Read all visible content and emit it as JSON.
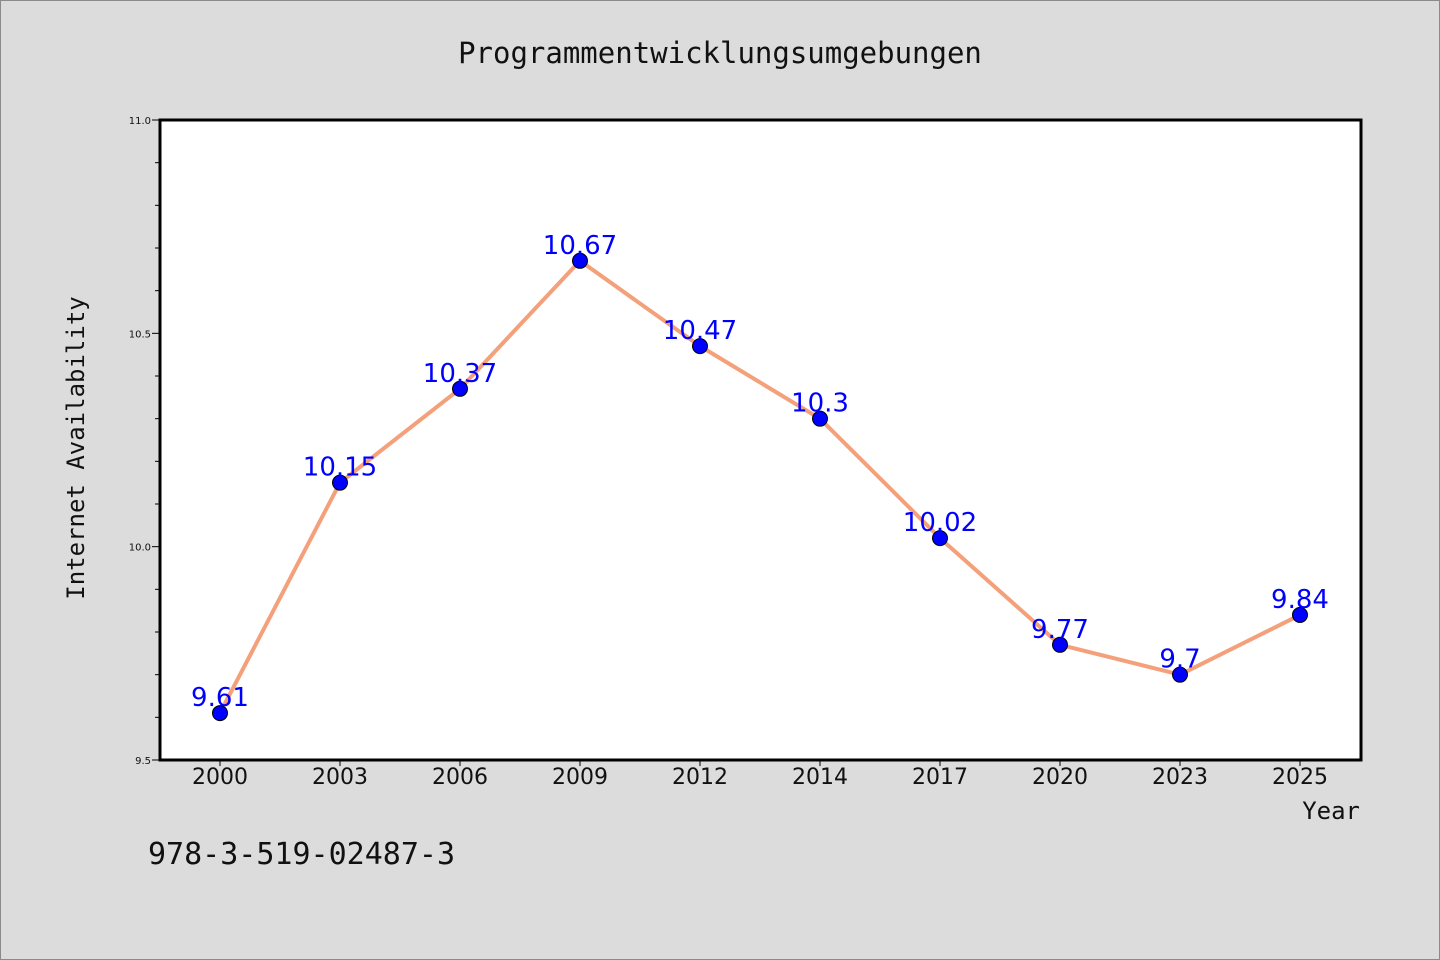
{
  "chart_data": {
    "type": "line",
    "title": "Programmentwicklungsumgebungen",
    "xlabel": "Year",
    "ylabel": "Internet Availability",
    "categories": [
      "2000",
      "2003",
      "2006",
      "2009",
      "2012",
      "2014",
      "2017",
      "2020",
      "2023",
      "2025"
    ],
    "series": [
      {
        "values": [
          9.61,
          10.15,
          10.37,
          10.67,
          10.47,
          10.3,
          10.02,
          9.77,
          9.7,
          9.84
        ],
        "line_color": "#f4a07a",
        "marker_color": "#0000ff",
        "label_color": "#0000ff"
      }
    ],
    "data_labels": [
      "9.61",
      "10.15",
      "10.37",
      "10.67",
      "10.47",
      "10.3",
      "10.02",
      "9.77",
      "9.7",
      "9.84"
    ],
    "ylim": [
      9.5,
      11.0
    ],
    "yticks": [
      9.5,
      10.0,
      10.5,
      11.0
    ],
    "ytick_labels": [
      "9.5",
      "10.0",
      "10.5",
      "11.0"
    ],
    "y_minor_step": 0.1,
    "grid": false,
    "background": "#dcdcdc",
    "plot_background": "#ffffff"
  },
  "annotation": {
    "isbn": "978-3-519-02487-3"
  }
}
